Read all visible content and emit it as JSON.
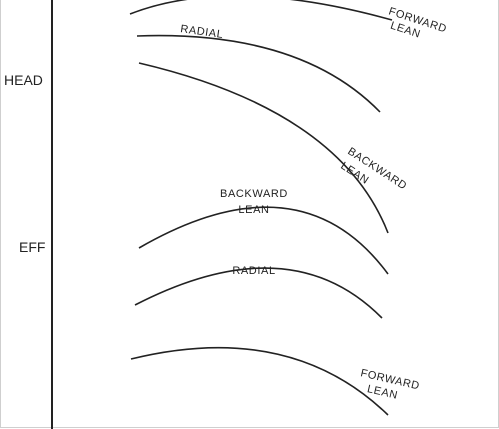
{
  "axis": {
    "head_label": "HEAD",
    "eff_label": "EFF"
  },
  "curves": {
    "head_forward_lean": {
      "line1": "FORWARD",
      "line2": "LEAN"
    },
    "head_radial": {
      "label": "RADIAL"
    },
    "head_backward_lean": {
      "line1": "BACKWARD",
      "line2": "LEAN"
    },
    "eff_backward_lean": {
      "line1": "BACKWARD",
      "line2": "LEAN"
    },
    "eff_radial": {
      "label": "RADIAL"
    },
    "eff_forward_lean": {
      "line1": "FORWARD",
      "line2": "LEAN"
    }
  },
  "colors": {
    "line": "#222222",
    "frame": "#cfcfcf"
  }
}
